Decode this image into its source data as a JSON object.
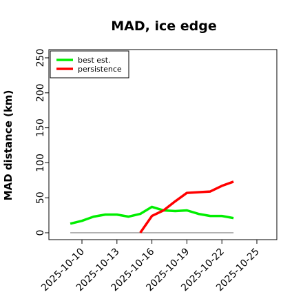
{
  "chart_data": {
    "type": "line",
    "title": "MAD, ice edge",
    "xlabel": "",
    "ylabel": "MAD distance (km)",
    "ylim": [
      0,
      260
    ],
    "xlim": [
      "2025-10-08",
      "2025-10-26"
    ],
    "yticks": [
      0,
      50,
      100,
      150,
      200,
      250
    ],
    "xticks": [
      "2025-10-10",
      "2025-10-13",
      "2025-10-16",
      "2025-10-19",
      "2025-10-22",
      "2025-10-25"
    ],
    "grid": false,
    "legend_position": "top-left",
    "baseline": {
      "value": 0,
      "x_range": [
        "2025-10-09",
        "2025-10-23"
      ],
      "color": "#666666"
    },
    "series": [
      {
        "name": "best est.",
        "color": "#00ee00",
        "points": [
          {
            "x": "2025-10-09",
            "y": 13
          },
          {
            "x": "2025-10-10",
            "y": 17
          },
          {
            "x": "2025-10-11",
            "y": 23
          },
          {
            "x": "2025-10-12",
            "y": 26
          },
          {
            "x": "2025-10-13",
            "y": 26
          },
          {
            "x": "2025-10-14",
            "y": 23
          },
          {
            "x": "2025-10-15",
            "y": 27
          },
          {
            "x": "2025-10-16",
            "y": 37
          },
          {
            "x": "2025-10-17",
            "y": 32
          },
          {
            "x": "2025-10-18",
            "y": 31
          },
          {
            "x": "2025-10-19",
            "y": 32
          },
          {
            "x": "2025-10-20",
            "y": 27
          },
          {
            "x": "2025-10-21",
            "y": 24
          },
          {
            "x": "2025-10-22",
            "y": 24
          },
          {
            "x": "2025-10-23",
            "y": 21
          }
        ]
      },
      {
        "name": "persistence",
        "color": "#ff0000",
        "points": [
          {
            "x": "2025-10-15",
            "y": 0
          },
          {
            "x": "2025-10-16",
            "y": 24
          },
          {
            "x": "2025-10-17",
            "y": 32
          },
          {
            "x": "2025-10-18",
            "y": 45
          },
          {
            "x": "2025-10-19",
            "y": 57
          },
          {
            "x": "2025-10-20",
            "y": 58
          },
          {
            "x": "2025-10-21",
            "y": 59
          },
          {
            "x": "2025-10-22",
            "y": 67
          },
          {
            "x": "2025-10-23",
            "y": 73
          }
        ]
      }
    ]
  }
}
